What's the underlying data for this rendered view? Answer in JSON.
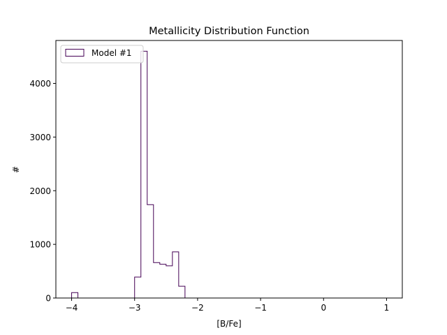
{
  "chart_data": {
    "type": "histogram",
    "title": "Metallicity Distribution Function",
    "xlabel": "[B/Fe]",
    "ylabel": "#",
    "xlim": [
      -4.25,
      1.25
    ],
    "ylim": [
      0,
      4800
    ],
    "xticks": [
      -4,
      -3,
      -2,
      -1,
      0,
      1
    ],
    "xtick_labels": [
      "−4",
      "−3",
      "−2",
      "−1",
      "0",
      "1"
    ],
    "yticks": [
      0,
      1000,
      2000,
      3000,
      4000
    ],
    "ytick_labels": [
      "0",
      "1000",
      "2000",
      "3000",
      "4000"
    ],
    "histtype": "step",
    "color": "#440154",
    "bin_edges": [
      -4.0,
      -3.9,
      -3.8,
      -3.7,
      -3.6,
      -3.5,
      -3.4,
      -3.3,
      -3.2,
      -3.1,
      -3.0,
      -2.9,
      -2.8,
      -2.7,
      -2.6,
      -2.5,
      -2.4,
      -2.3,
      -2.2,
      -2.1,
      -2.0,
      -1.9,
      -1.8,
      -1.7,
      -1.6,
      -1.5,
      -1.4,
      -1.3,
      -1.2,
      -1.1,
      -1.0,
      -0.9,
      -0.8,
      -0.7,
      -0.6,
      -0.5,
      -0.4,
      -0.3,
      -0.2,
      -0.1,
      0.0,
      0.1,
      0.2,
      0.3,
      0.4,
      0.5,
      0.6,
      0.7,
      0.8,
      0.9,
      1.0
    ],
    "series": [
      {
        "name": "Model #1",
        "counts": [
          100,
          0,
          0,
          0,
          0,
          0,
          0,
          0,
          0,
          0,
          390,
          4600,
          1740,
          660,
          630,
          600,
          860,
          220,
          0,
          0,
          0,
          0,
          0,
          0,
          0,
          0,
          0,
          0,
          0,
          0,
          0,
          0,
          0,
          0,
          0,
          0,
          0,
          0,
          0,
          0,
          0,
          0,
          0,
          0,
          0,
          0,
          0,
          0,
          0,
          0
        ]
      }
    ],
    "legend": {
      "position": "upper-left"
    },
    "grid": false
  }
}
